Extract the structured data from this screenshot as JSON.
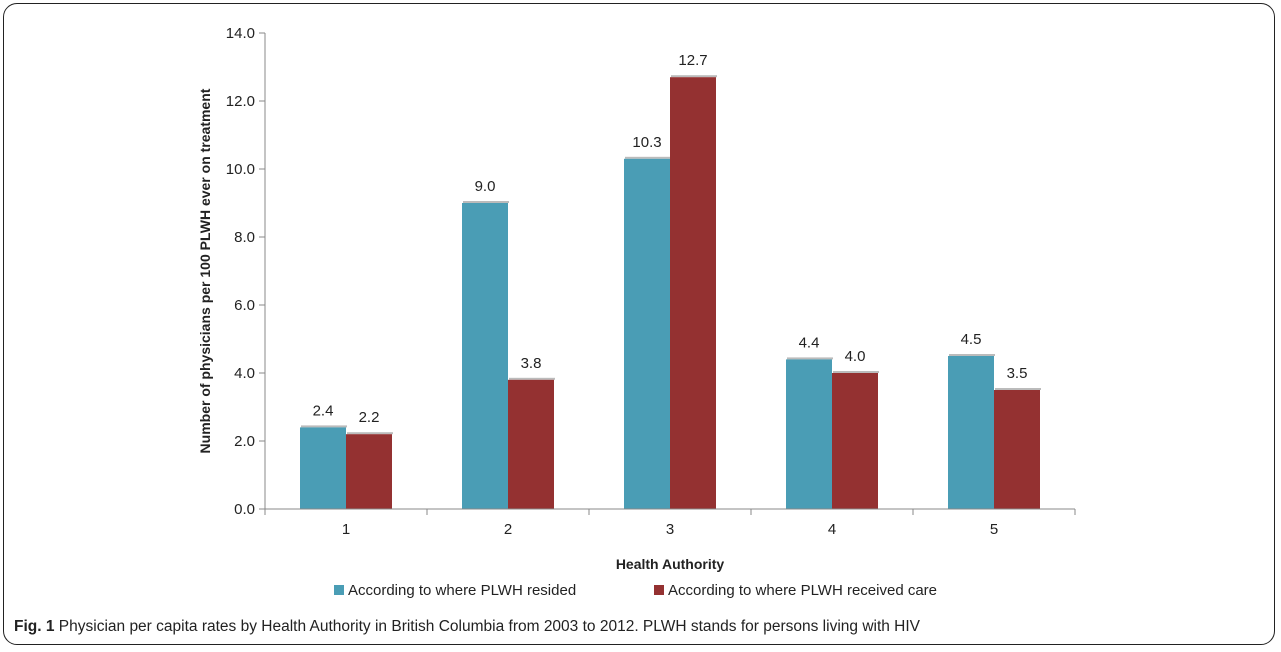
{
  "chart_data": {
    "type": "bar",
    "categories": [
      "1",
      "2",
      "3",
      "4",
      "5"
    ],
    "series": [
      {
        "name": "According to where PLWH resided",
        "values": [
          2.4,
          9.0,
          10.3,
          4.4,
          4.5
        ],
        "color": "#4a9db5"
      },
      {
        "name": "According to where PLWH received care",
        "values": [
          2.2,
          3.8,
          12.7,
          4.0,
          3.5
        ],
        "color": "#943131"
      }
    ],
    "xlabel": "Health Authority",
    "ylabel": "Number of physicians per 100 PLWH ever on treatment",
    "ylim": [
      0,
      14
    ],
    "yticks": [
      "0.0",
      "2.0",
      "4.0",
      "6.0",
      "8.0",
      "10.0",
      "12.0",
      "14.0"
    ],
    "legend_position": "bottom",
    "grid": false
  },
  "caption": {
    "label": "Fig. 1",
    "text": "Physician per capita rates by Health Authority in British Columbia from 2003 to 2012. PLWH stands for persons living with HIV"
  }
}
